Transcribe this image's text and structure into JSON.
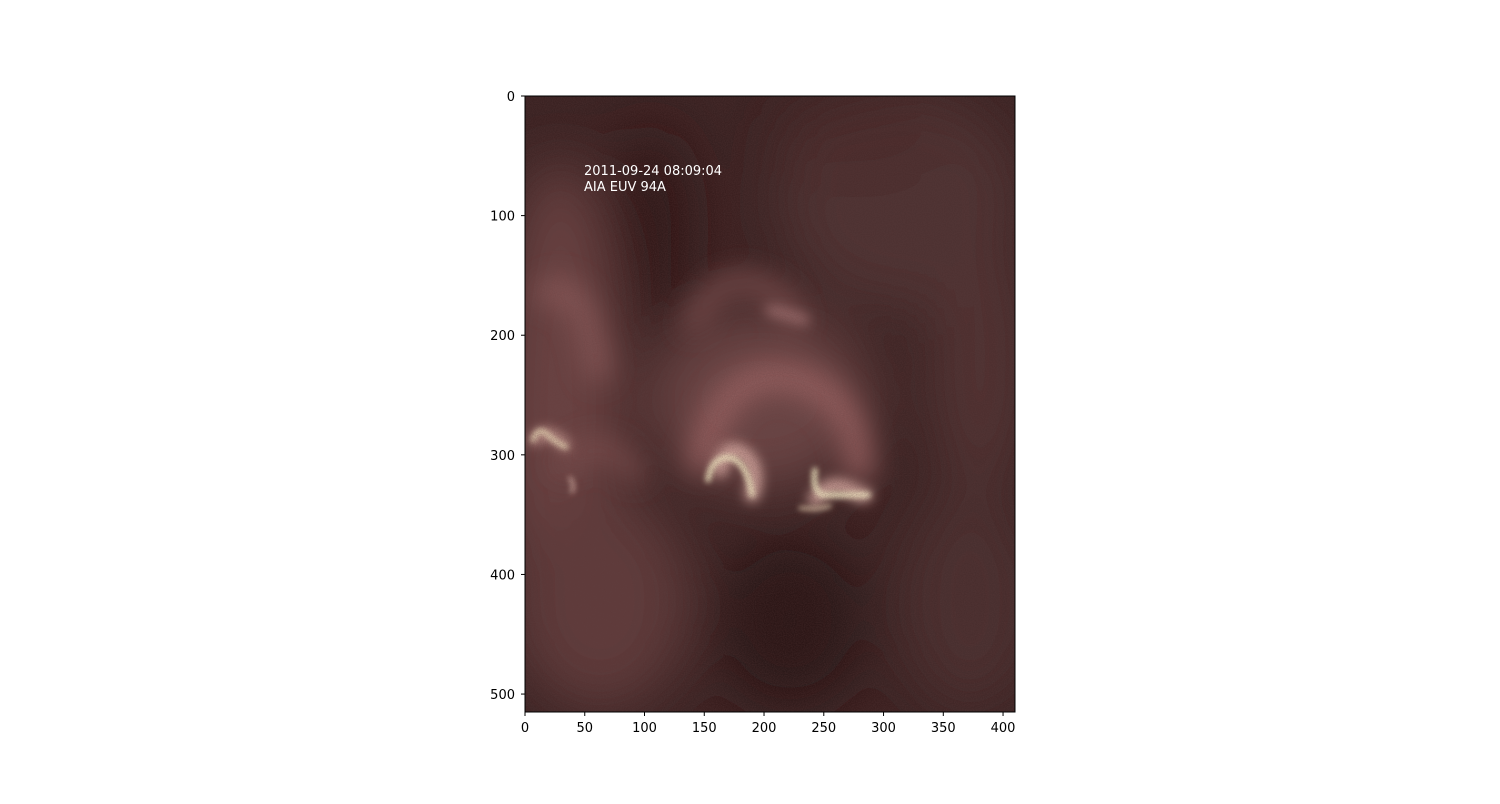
{
  "image": {
    "annotation": {
      "line1": "2011-09-24 08:09:04",
      "line2": "AIA EUV 94A"
    },
    "x_axis": {
      "range": [
        0,
        410
      ],
      "ticks": [
        "0",
        "50",
        "100",
        "150",
        "200",
        "250",
        "300",
        "350",
        "400"
      ]
    },
    "y_axis": {
      "range": [
        0,
        515
      ],
      "inverted": true,
      "ticks": [
        "0",
        "100",
        "200",
        "300",
        "400",
        "500"
      ]
    },
    "colormap": [
      "#2a0e10",
      "#4a2a2a",
      "#7a4c4c",
      "#b48080",
      "#f6f0c8"
    ]
  }
}
